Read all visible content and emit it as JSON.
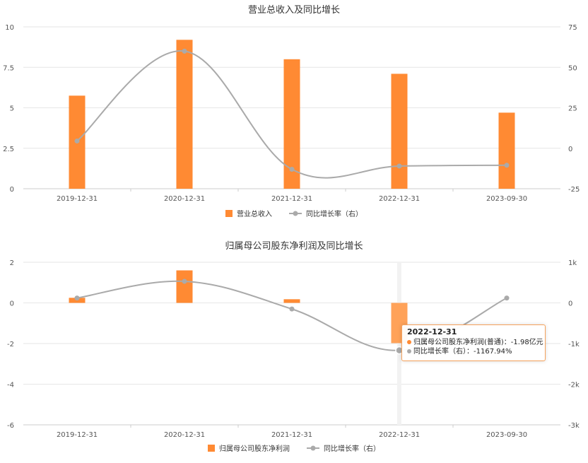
{
  "chart_data": [
    {
      "type": "bar",
      "title": "营业总收入及同比增长",
      "categories": [
        "2019-12-31",
        "2020-12-31",
        "2021-12-31",
        "2022-12-31",
        "2023-09-30"
      ],
      "series": [
        {
          "name": "营业总收入",
          "type": "bar",
          "axis": "left",
          "color": "#ff8a33",
          "values": [
            5.75,
            9.2,
            8.0,
            7.1,
            4.7
          ]
        },
        {
          "name": "同比增长率（右）",
          "type": "line",
          "axis": "right",
          "color": "#aaaaaa",
          "values": [
            4.5,
            60.0,
            -13.0,
            -11.0,
            -10.5
          ]
        }
      ],
      "ylim_left": [
        0,
        10
      ],
      "yticks_left": [
        "10",
        "7.5",
        "5",
        "2.5",
        "0"
      ],
      "ylim_right": [
        -25,
        75
      ],
      "yticks_right": [
        "75",
        "50",
        "25",
        "0",
        "-25"
      ],
      "legend": "bottom"
    },
    {
      "type": "bar",
      "title": "归属母公司股东净利润及同比增长",
      "categories": [
        "2019-12-31",
        "2020-12-31",
        "2021-12-31",
        "2022-12-31",
        "2023-09-30"
      ],
      "series": [
        {
          "name": "归属母公司股东净利润",
          "type": "bar",
          "axis": "left",
          "color": "#ff8a33",
          "values": [
            0.25,
            1.6,
            0.18,
            -1.98,
            null
          ]
        },
        {
          "name": "同比增长率（右）",
          "type": "line",
          "axis": "right",
          "color": "#aaaaaa",
          "values": [
            120,
            530,
            -150,
            -1167.94,
            120
          ]
        }
      ],
      "ylim_left": [
        -6,
        2
      ],
      "yticks_left": [
        "2",
        "0",
        "-2",
        "-4",
        "-6"
      ],
      "ylim_right": [
        -3000,
        1000
      ],
      "yticks_right": [
        "1k",
        "0",
        "-1k",
        "-2k",
        "-3k"
      ],
      "legend": "bottom",
      "tooltip": {
        "date": "2022-12-31",
        "line1": "归属母公司股东净利润(普通)：-1.98亿元",
        "line2": "同比增长率（右）：-1167.94%"
      }
    }
  ]
}
